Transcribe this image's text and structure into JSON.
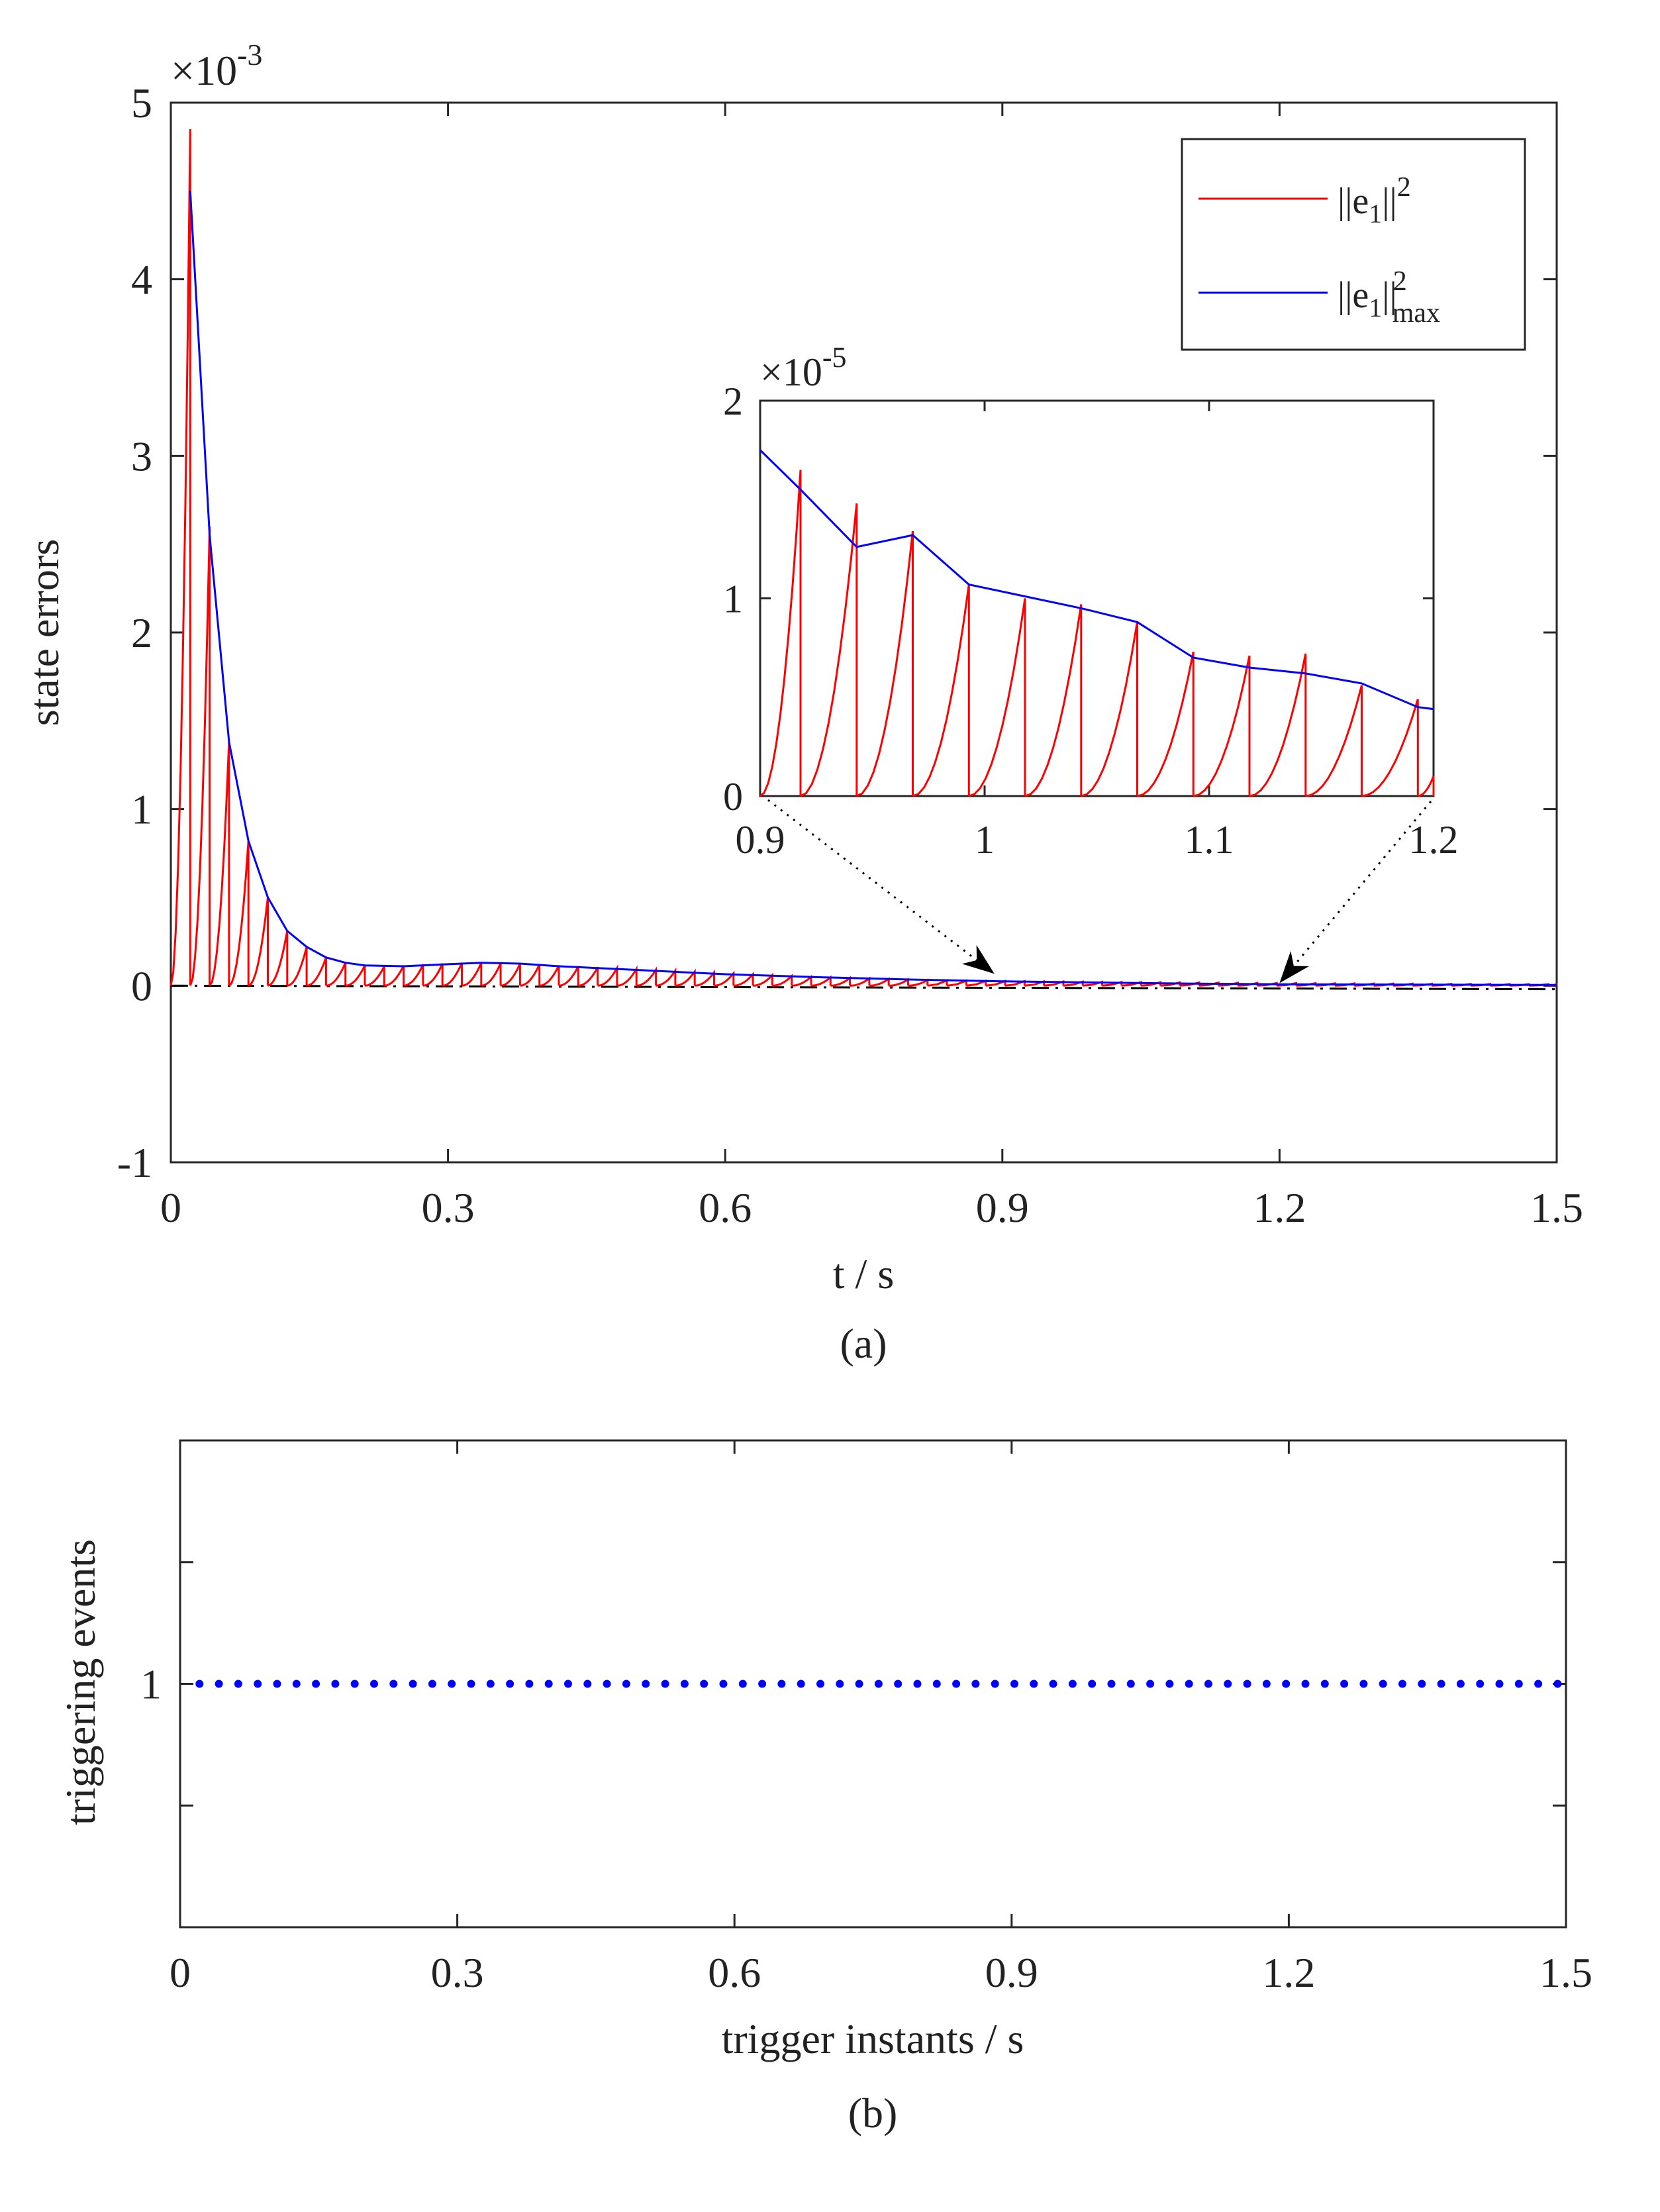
{
  "chart_data": [
    {
      "type": "line",
      "caption": "(a)",
      "xlabel": "t / s",
      "ylabel": "state errors",
      "xlim": [
        0,
        1.5
      ],
      "ylim": [
        -1,
        5
      ],
      "y_scale_label": "×10",
      "y_scale_exponent": "-3",
      "xticks": [
        0,
        0.3,
        0.6,
        0.9,
        1.2,
        1.5
      ],
      "xtick_labels": [
        "0",
        "0.3",
        "0.6",
        "0.9",
        "1.2",
        "1.5"
      ],
      "yticks": [
        -1,
        0,
        1,
        2,
        3,
        4,
        5
      ],
      "ytick_labels": [
        "-1",
        "0",
        "1",
        "2",
        "3",
        "4",
        "5"
      ],
      "legend": {
        "position": "top-right",
        "entries": [
          {
            "label": "||e1||²",
            "base": "||e",
            "sub": "1",
            "post": "||",
            "sup": "2",
            "color": "#ff0000"
          },
          {
            "label": "||e1||²max",
            "base": "||e",
            "sub": "1",
            "post": "||",
            "sup": "2",
            "sub2": "max",
            "color": "#0000ff"
          }
        ]
      },
      "series": [
        {
          "name": "||e1||² (sawtooth, resets to 0 at each trigger instant)",
          "color": "#ff0000",
          "triggers": [
            0,
            0.021,
            0.042,
            0.063,
            0.084,
            0.105,
            0.126,
            0.147,
            0.168,
            0.189,
            0.21,
            0.231,
            0.252,
            0.273,
            0.294,
            0.315,
            0.336,
            0.357,
            0.378,
            0.399,
            0.42,
            0.441,
            0.462,
            0.483,
            0.504,
            0.525,
            0.546,
            0.567,
            0.588,
            0.609,
            0.63,
            0.651,
            0.672,
            0.693,
            0.714,
            0.735,
            0.756,
            0.777,
            0.798
          ],
          "peaks": [
            4.85,
            2.6,
            1.38,
            0.82,
            0.5,
            0.31,
            0.22,
            0.16,
            0.13,
            0.115,
            0.11,
            0.115,
            0.12,
            0.125,
            0.13,
            0.13,
            0.128,
            0.125,
            0.12,
            0.115,
            0.11,
            0.105,
            0.1,
            0.095,
            0.09,
            0.085,
            0.08,
            0.075,
            0.07,
            0.065,
            0.06,
            0.055,
            0.05,
            0.047,
            0.044,
            0.041,
            0.038,
            0.035,
            0.032
          ]
        },
        {
          "name": "||e1||²max (envelope)",
          "color": "#0000ff",
          "x": [
            0.021,
            0.042,
            0.063,
            0.084,
            0.105,
            0.126,
            0.147,
            0.168,
            0.189,
            0.21,
            0.252,
            0.294,
            0.336,
            0.378,
            0.42,
            0.5,
            0.6,
            0.7,
            0.8,
            0.9,
            1.0,
            1.1,
            1.2,
            1.5
          ],
          "y": [
            4.5,
            2.55,
            1.38,
            0.82,
            0.5,
            0.31,
            0.22,
            0.16,
            0.13,
            0.115,
            0.11,
            0.12,
            0.13,
            0.125,
            0.11,
            0.09,
            0.065,
            0.048,
            0.035,
            0.025,
            0.018,
            0.012,
            0.008,
            0.004
          ]
        },
        {
          "name": "zero reference (dash-dot)",
          "color": "#000000",
          "x": [
            0,
            1.5
          ],
          "y": [
            0,
            -0.02
          ]
        }
      ],
      "inset": {
        "xlim": [
          0.9,
          1.2
        ],
        "ylim": [
          0,
          2
        ],
        "y_scale_label": "×10",
        "y_scale_exponent": "-5",
        "xticks": [
          0.9,
          1.0,
          1.1,
          1.2
        ],
        "xtick_labels": [
          "0.9",
          "1",
          "1.1",
          "1.2"
        ],
        "yticks": [
          0,
          1,
          2
        ],
        "ytick_labels": [
          "0",
          "1",
          "2"
        ],
        "zoom_range_on_main": [
          0.9,
          1.2
        ],
        "red_triggers": [
          0.9,
          0.918,
          0.943,
          0.968,
          0.993,
          1.018,
          1.043,
          1.068,
          1.093,
          1.118,
          1.143,
          1.168,
          1.193,
          1.2
        ],
        "red_peaks": [
          1.65,
          1.48,
          1.34,
          1.07,
          1.0,
          0.97,
          0.88,
          0.73,
          0.71,
          0.72,
          0.56,
          0.49,
          0.1
        ],
        "blue_x": [
          0.9,
          0.918,
          0.943,
          0.968,
          0.993,
          1.043,
          1.068,
          1.093,
          1.118,
          1.143,
          1.168,
          1.193,
          1.2
        ],
        "blue_y": [
          1.75,
          1.55,
          1.26,
          1.32,
          1.07,
          0.95,
          0.88,
          0.7,
          0.65,
          0.62,
          0.57,
          0.45,
          0.44
        ]
      }
    },
    {
      "type": "scatter",
      "caption": "(b)",
      "xlabel": "trigger instants / s",
      "ylabel": "triggering events",
      "xlim": [
        0,
        1.5
      ],
      "ylim": [
        0,
        2
      ],
      "xticks": [
        0,
        0.3,
        0.6,
        0.9,
        1.2,
        1.5
      ],
      "xtick_labels": [
        "0",
        "0.3",
        "0.6",
        "0.9",
        "1.2",
        "1.5"
      ],
      "yticks": [
        0.5,
        1,
        1.5
      ],
      "ytick_labels": [
        "",
        "1",
        ""
      ],
      "marker_color": "#0000ff",
      "event_value": 1,
      "event_start": 0.021,
      "event_step": 0.021,
      "event_count": 72
    }
  ]
}
